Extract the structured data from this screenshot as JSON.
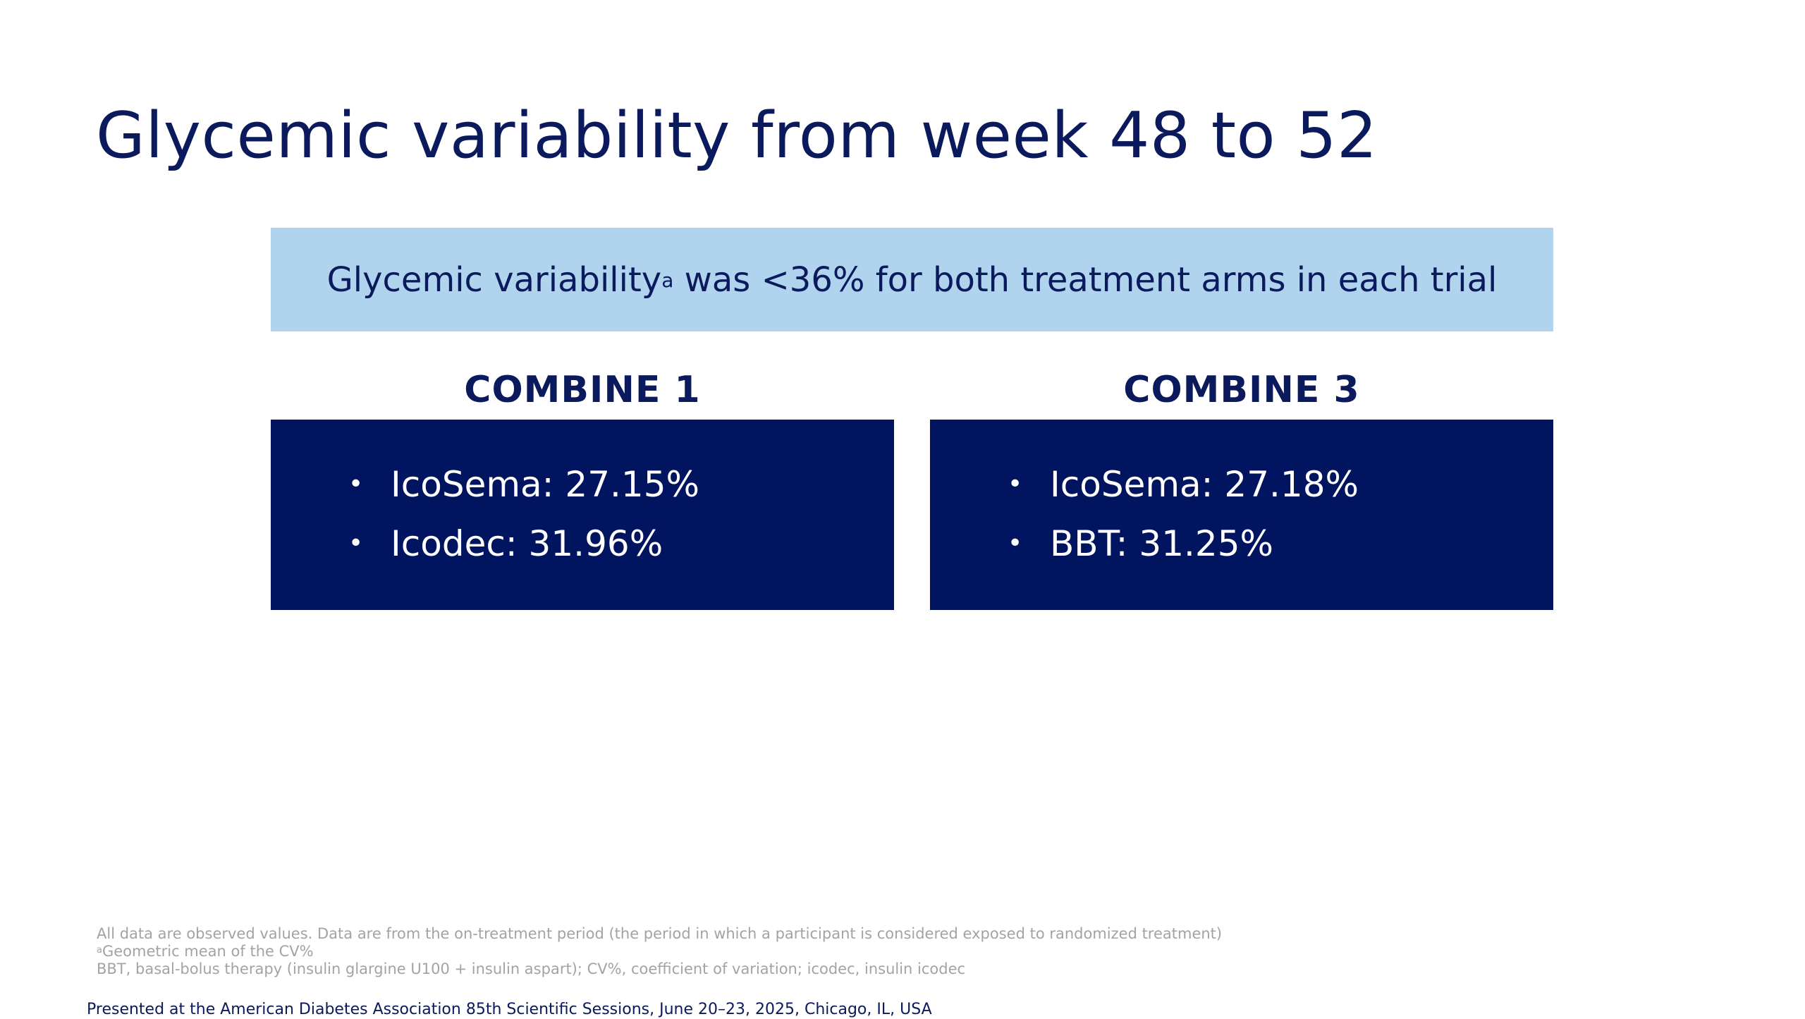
{
  "title": "Glycemic variability from week 48 to 52",
  "banner": {
    "text_before": "Glycemic variability",
    "superscript": "a",
    "text_after": " was <36% for both treatment arms in each trial"
  },
  "trials": [
    {
      "heading": "COMBINE 1",
      "bullet_symbol": "•",
      "items": [
        "IcoSema: 27.15%",
        "Icodec: 31.96%"
      ]
    },
    {
      "heading": "COMBINE 3",
      "bullet_symbol": "•",
      "items": [
        "IcoSema: 27.18%",
        "BBT: 31.25%"
      ]
    }
  ],
  "footnotes": {
    "line1": "All data are observed values. Data are from the on-treatment period (the period in which a participant is considered exposed to randomized treatment)",
    "line2_marker": "a",
    "line2": "Geometric mean of the CV%",
    "line3": "BBT, basal-bolus therapy (insulin glargine U100 + insulin aspart); CV%, coefficient of variation; icodec, insulin icodec"
  },
  "presented_at": "Presented at the American Diabetes Association 85th Scientific Sessions, June 20–23, 2025, Chicago, IL, USA",
  "colors": {
    "navy": "#001460",
    "title_text": "#0a1a5c",
    "banner_bg": "#b0d3ee",
    "footnote_text": "#a3a3a3"
  }
}
